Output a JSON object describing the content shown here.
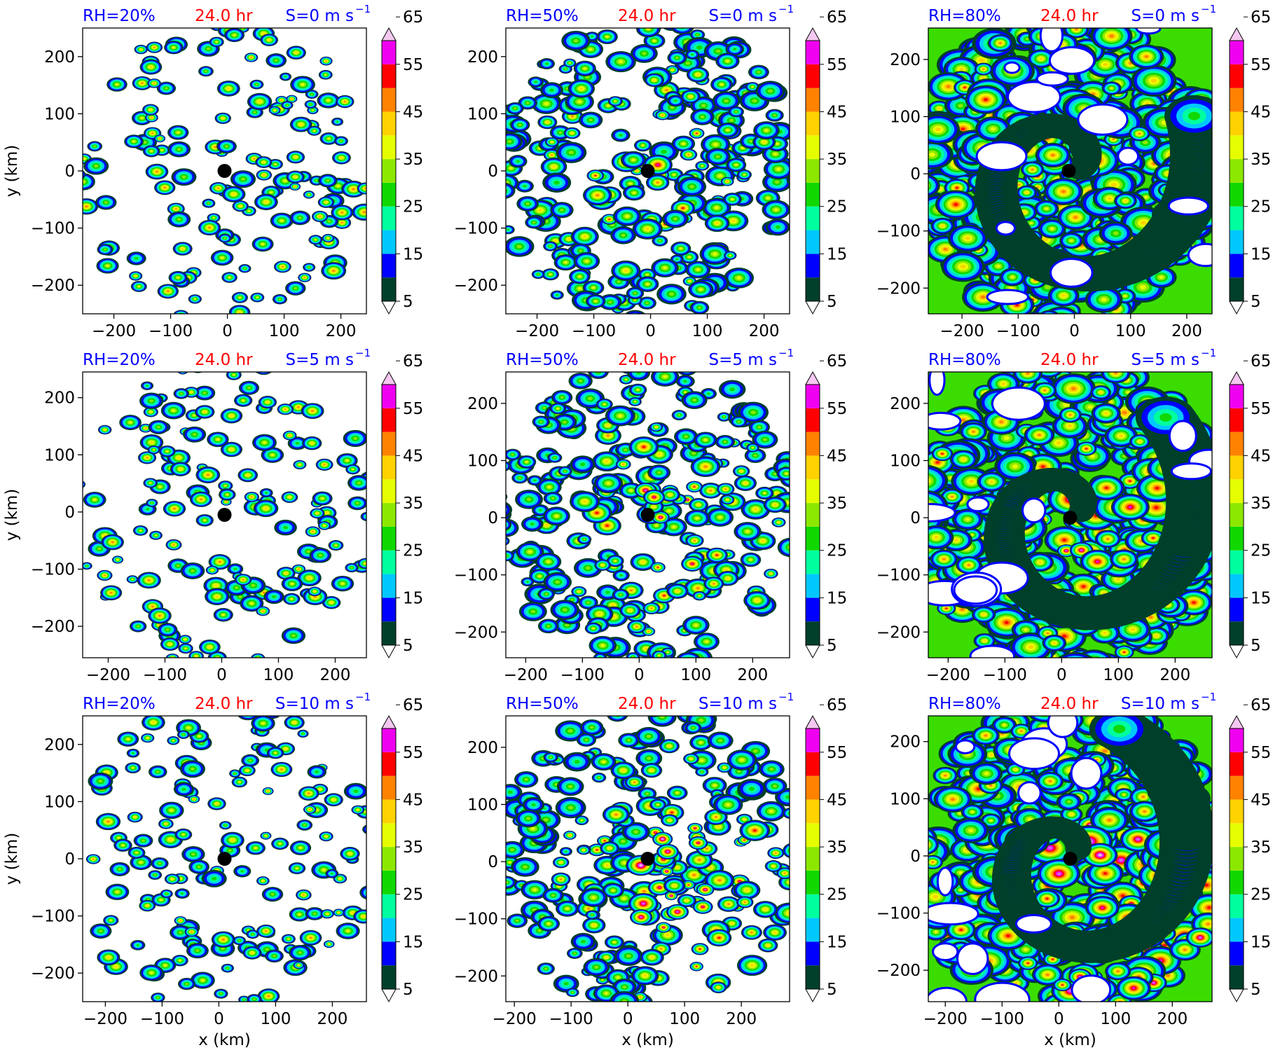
{
  "figure": {
    "row_titles": [
      {
        "rh": "RH=20%",
        "time": "24.0 hr"
      },
      {
        "rh": "RH=50%",
        "time": "24.0 hr"
      },
      {
        "rh": "RH=80%",
        "time": "24.0 hr"
      }
    ],
    "shear_labels": [
      "S=0 m s",
      "S=5 m s",
      "S=10 m s"
    ],
    "shear_unit_exponent": "−1",
    "ylabel": "y (km)",
    "xlabel": "x (km)",
    "colors": {
      "rh_title": "#0000ff",
      "time_title": "#ff0000",
      "center_marker": "#000000"
    }
  },
  "colorbar": {
    "levels": [
      5,
      10,
      15,
      20,
      25,
      30,
      35,
      40,
      45,
      50,
      55,
      60,
      65,
      70
    ],
    "tick_labels": [
      "5",
      "15",
      "25",
      "35",
      "45",
      "55",
      "65"
    ],
    "colors": [
      "#00402a",
      "#0000ff",
      "#00c8ff",
      "#00ff9f",
      "#10d800",
      "#8ce800",
      "#e6ff00",
      "#ffd200",
      "#ff8200",
      "#ff0000",
      "#f000f0",
      "#d070e0",
      "#f4c8f0"
    ],
    "extend": "both"
  },
  "chart_data": [
    {
      "type": "heatmap",
      "rh": "RH=20%",
      "time": "24.0 hr",
      "shear": "S=0 m s⁻¹",
      "xlim": [
        -255,
        245
      ],
      "ylim": [
        -250,
        250
      ],
      "xticks": [
        -200,
        -100,
        0,
        100,
        200
      ],
      "yticks": [
        -200,
        -100,
        0,
        100,
        200
      ],
      "xlabel": "",
      "ylabel": "y (km)",
      "center": [
        -5,
        0
      ]
    },
    {
      "type": "heatmap",
      "rh": "RH=50%",
      "time": "24.0 hr",
      "shear": "S=0 m s⁻¹",
      "xlim": [
        -255,
        245
      ],
      "ylim": [
        -250,
        250
      ],
      "xticks": [
        -200,
        -100,
        0,
        100,
        200
      ],
      "yticks": [
        -200,
        -100,
        0,
        100,
        200
      ],
      "xlabel": "",
      "ylabel": "",
      "center": [
        -5,
        0
      ]
    },
    {
      "type": "heatmap",
      "rh": "RH=80%",
      "time": "24.0 hr",
      "shear": "S=0 m s⁻¹",
      "xlim": [
        -260,
        245
      ],
      "ylim": [
        -245,
        255
      ],
      "xticks": [
        -200,
        -100,
        0,
        100,
        200
      ],
      "yticks": [
        -200,
        -100,
        0,
        100,
        200
      ],
      "xlabel": "",
      "ylabel": "",
      "center": [
        -10,
        5
      ]
    },
    {
      "type": "heatmap",
      "rh": "RH=20%",
      "time": "24.0 hr",
      "shear": "S=5 m s⁻¹",
      "xlim": [
        -245,
        255
      ],
      "ylim": [
        -255,
        245
      ],
      "xticks": [
        -200,
        -100,
        0,
        100,
        200
      ],
      "yticks": [
        -200,
        -100,
        0,
        100,
        200
      ],
      "xlabel": "",
      "ylabel": "y (km)",
      "center": [
        5,
        -5
      ]
    },
    {
      "type": "heatmap",
      "rh": "RH=50%",
      "time": "24.0 hr",
      "shear": "S=5 m s⁻¹",
      "xlim": [
        -235,
        265
      ],
      "ylim": [
        -245,
        255
      ],
      "xticks": [
        -200,
        -100,
        0,
        100,
        200
      ],
      "yticks": [
        -200,
        -100,
        0,
        100,
        200
      ],
      "xlabel": "",
      "ylabel": "",
      "center": [
        15,
        5
      ]
    },
    {
      "type": "heatmap",
      "rh": "RH=80%",
      "time": "24.0 hr",
      "shear": "S=5 m s⁻¹",
      "xlim": [
        -235,
        265
      ],
      "ylim": [
        -245,
        255
      ],
      "xticks": [
        -200,
        -100,
        0,
        100,
        200
      ],
      "yticks": [
        -200,
        -100,
        0,
        100,
        200
      ],
      "xlabel": "",
      "ylabel": "",
      "center": [
        15,
        0
      ]
    },
    {
      "type": "heatmap",
      "rh": "RH=20%",
      "time": "24.0 hr",
      "shear": "S=10 m s⁻¹",
      "xlim": [
        -240,
        260
      ],
      "ylim": [
        -250,
        250
      ],
      "xticks": [
        -200,
        -100,
        0,
        100,
        200
      ],
      "yticks": [
        -200,
        -100,
        0,
        100,
        200
      ],
      "xlabel": "x (km)",
      "ylabel": "y (km)",
      "center": [
        10,
        0
      ]
    },
    {
      "type": "heatmap",
      "rh": "RH=50%",
      "time": "24.0 hr",
      "shear": "S=10 m s⁻¹",
      "xlim": [
        -215,
        285
      ],
      "ylim": [
        -245,
        255
      ],
      "xticks": [
        -200,
        -100,
        0,
        100,
        200
      ],
      "yticks": [
        -200,
        -100,
        0,
        100,
        200
      ],
      "xlabel": "x (km)",
      "ylabel": "",
      "center": [
        35,
        5
      ]
    },
    {
      "type": "heatmap",
      "rh": "RH=80%",
      "time": "24.0 hr",
      "shear": "S=10 m s⁻¹",
      "xlim": [
        -230,
        270
      ],
      "ylim": [
        -255,
        245
      ],
      "xticks": [
        -200,
        -100,
        0,
        100,
        200
      ],
      "yticks": [
        -200,
        -100,
        0,
        100,
        200
      ],
      "xlabel": "x (km)",
      "ylabel": "",
      "center": [
        20,
        -5
      ]
    }
  ]
}
